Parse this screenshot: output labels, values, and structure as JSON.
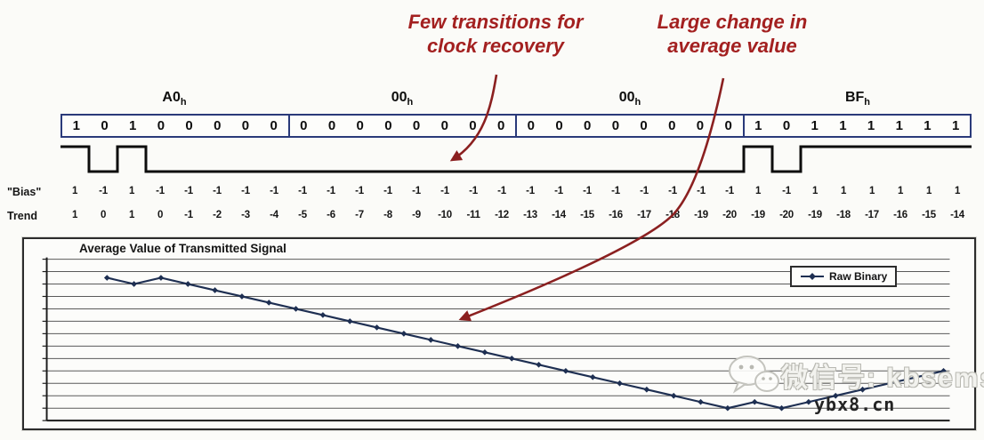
{
  "annotations": {
    "few_transitions": "Few transitions for clock recovery",
    "large_change": "Large change in average value"
  },
  "encoding": {
    "hex_sub": "h",
    "groups": [
      {
        "hex": "A0",
        "bits": [
          1,
          0,
          1,
          0,
          0,
          0,
          0,
          0
        ]
      },
      {
        "hex": "00",
        "bits": [
          0,
          0,
          0,
          0,
          0,
          0,
          0,
          0
        ]
      },
      {
        "hex": "00",
        "bits": [
          0,
          0,
          0,
          0,
          0,
          0,
          0,
          0
        ]
      },
      {
        "hex": "BF",
        "bits": [
          1,
          0,
          1,
          1,
          1,
          1,
          1,
          1
        ]
      }
    ],
    "bias_label": "\"Bias\"",
    "trend_label": "Trend",
    "bias": [
      1,
      -1,
      1,
      -1,
      -1,
      -1,
      -1,
      -1,
      -1,
      -1,
      -1,
      -1,
      -1,
      -1,
      -1,
      -1,
      -1,
      -1,
      -1,
      -1,
      -1,
      -1,
      -1,
      -1,
      1,
      -1,
      1,
      1,
      1,
      1,
      1,
      1
    ],
    "trend": [
      1,
      0,
      1,
      0,
      -1,
      -2,
      -3,
      -4,
      -5,
      -6,
      -7,
      -8,
      -9,
      -10,
      -11,
      -12,
      -13,
      -14,
      -15,
      -16,
      -17,
      -18,
      -19,
      -20,
      -19,
      -20,
      -19,
      -18,
      -17,
      -16,
      -15,
      -14
    ]
  },
  "chart_data": {
    "type": "line",
    "title": "Average Value of Transmitted Signal",
    "x": [
      1,
      2,
      3,
      4,
      5,
      6,
      7,
      8,
      9,
      10,
      11,
      12,
      13,
      14,
      15,
      16,
      17,
      18,
      19,
      20,
      21,
      22,
      23,
      24,
      25,
      26,
      27,
      28,
      29,
      30,
      31,
      32
    ],
    "series": [
      {
        "name": "Raw Binary",
        "values": [
          1,
          0,
          1,
          0,
          -1,
          -2,
          -3,
          -4,
          -5,
          -6,
          -7,
          -8,
          -9,
          -10,
          -11,
          -12,
          -13,
          -14,
          -15,
          -16,
          -17,
          -18,
          -19,
          -20,
          -19,
          -20,
          -19,
          -18,
          -17,
          -16,
          -15,
          -14
        ]
      }
    ],
    "xlabel": "",
    "ylabel": "",
    "ylim": [
      -22,
      4
    ],
    "gridline_step": 2,
    "grid": true,
    "legend_position": "top-right",
    "line_color": "#1e2f52"
  },
  "watermark": {
    "wechat_text": "微信号: kbsems",
    "site_text": "ybx8.cn"
  },
  "colors": {
    "annotation_red": "#a32020",
    "arrow_maroon": "#8b2020",
    "table_border_navy": "#2a3a7a",
    "chart_line_navy": "#1e2f52",
    "gridline_gray": "#5a5a5a"
  }
}
